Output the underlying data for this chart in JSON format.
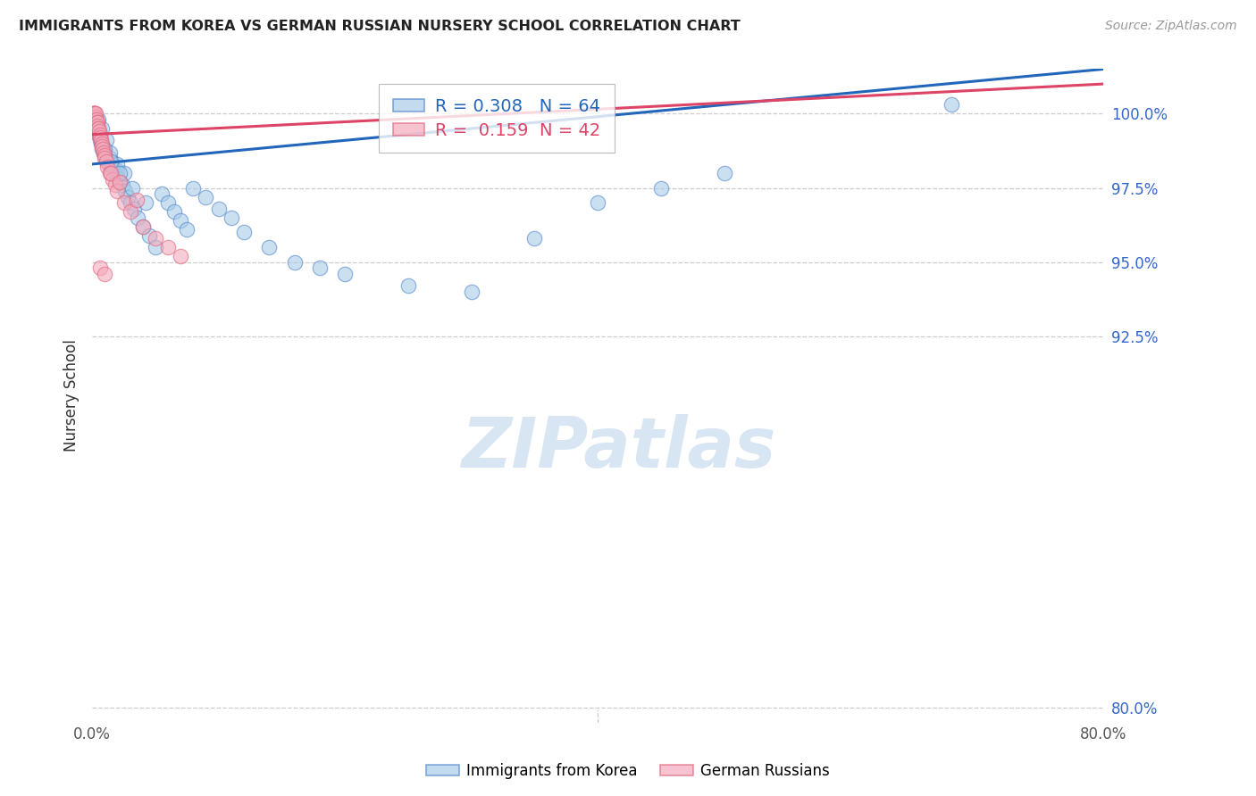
{
  "title": "IMMIGRANTS FROM KOREA VS GERMAN RUSSIAN NURSERY SCHOOL CORRELATION CHART",
  "source": "Source: ZipAtlas.com",
  "ylabel": "Nursery School",
  "y_ticks": [
    80.0,
    92.5,
    95.0,
    97.5,
    100.0
  ],
  "x_min": 0.0,
  "x_max": 80.0,
  "y_min": 79.5,
  "y_max": 101.5,
  "R_blue": "0.308",
  "N_blue": 64,
  "R_pink": "0.159",
  "N_pink": 42,
  "blue_fill": "#a8cce8",
  "pink_fill": "#f4aabc",
  "blue_edge": "#5588cc",
  "pink_edge": "#e06880",
  "blue_line": "#2266bb",
  "pink_line": "#dd4466",
  "watermark": "ZIPatlas",
  "legend_label_blue": "Immigrants from Korea",
  "legend_label_pink": "German Russians",
  "blue_x": [
    0.2,
    0.3,
    0.4,
    0.5,
    0.6,
    0.7,
    0.8,
    0.9,
    1.0,
    1.1,
    1.2,
    1.3,
    1.4,
    1.5,
    1.6,
    1.7,
    1.8,
    1.9,
    2.0,
    2.1,
    2.2,
    2.4,
    2.6,
    2.8,
    3.0,
    3.3,
    3.6,
    4.0,
    4.5,
    5.0,
    5.5,
    6.0,
    6.5,
    7.0,
    7.5,
    8.0,
    9.0,
    10.0,
    11.0,
    12.0,
    14.0,
    16.0,
    18.0,
    20.0,
    25.0,
    30.0,
    35.0,
    40.0,
    45.0,
    50.0,
    0.5,
    0.8,
    1.1,
    1.4,
    2.0,
    2.5,
    3.2,
    4.2,
    0.3,
    0.6,
    1.0,
    1.5,
    2.2,
    68.0
  ],
  "blue_y": [
    99.5,
    99.6,
    99.4,
    99.3,
    99.1,
    99.0,
    98.8,
    98.7,
    98.6,
    98.5,
    98.4,
    98.3,
    98.5,
    98.4,
    98.2,
    98.1,
    98.0,
    97.9,
    98.1,
    97.8,
    97.7,
    97.6,
    97.4,
    97.2,
    97.0,
    96.8,
    96.5,
    96.2,
    95.9,
    95.5,
    97.3,
    97.0,
    96.7,
    96.4,
    96.1,
    97.5,
    97.2,
    96.8,
    96.5,
    96.0,
    95.5,
    95.0,
    94.8,
    94.6,
    94.2,
    94.0,
    95.8,
    97.0,
    97.5,
    98.0,
    99.8,
    99.5,
    99.1,
    98.7,
    98.3,
    98.0,
    97.5,
    97.0,
    99.7,
    99.2,
    98.8,
    98.4,
    98.0,
    100.3
  ],
  "pink_x": [
    0.1,
    0.1,
    0.1,
    0.15,
    0.2,
    0.2,
    0.25,
    0.3,
    0.3,
    0.35,
    0.4,
    0.4,
    0.45,
    0.5,
    0.5,
    0.55,
    0.6,
    0.65,
    0.7,
    0.75,
    0.8,
    0.85,
    0.9,
    0.95,
    1.0,
    1.1,
    1.2,
    1.4,
    1.6,
    1.8,
    2.0,
    2.5,
    3.0,
    4.0,
    5.0,
    6.0,
    7.0,
    1.5,
    2.2,
    3.5,
    0.6,
    1.0
  ],
  "pink_y": [
    100.0,
    100.0,
    100.0,
    100.0,
    100.0,
    100.0,
    99.9,
    99.8,
    100.0,
    99.8,
    99.7,
    99.7,
    99.6,
    99.5,
    99.5,
    99.4,
    99.3,
    99.2,
    99.1,
    99.0,
    98.9,
    98.8,
    98.7,
    98.6,
    98.5,
    98.4,
    98.2,
    98.0,
    97.8,
    97.6,
    97.4,
    97.0,
    96.7,
    96.2,
    95.8,
    95.5,
    95.2,
    98.0,
    97.7,
    97.1,
    94.8,
    94.6
  ],
  "blue_trendline_x0": 0.0,
  "blue_trendline_y0": 98.3,
  "blue_trendline_x1": 80.0,
  "blue_trendline_y1": 101.5,
  "pink_trendline_x0": 0.0,
  "pink_trendline_y0": 99.3,
  "pink_trendline_x1": 80.0,
  "pink_trendline_y1": 101.0
}
